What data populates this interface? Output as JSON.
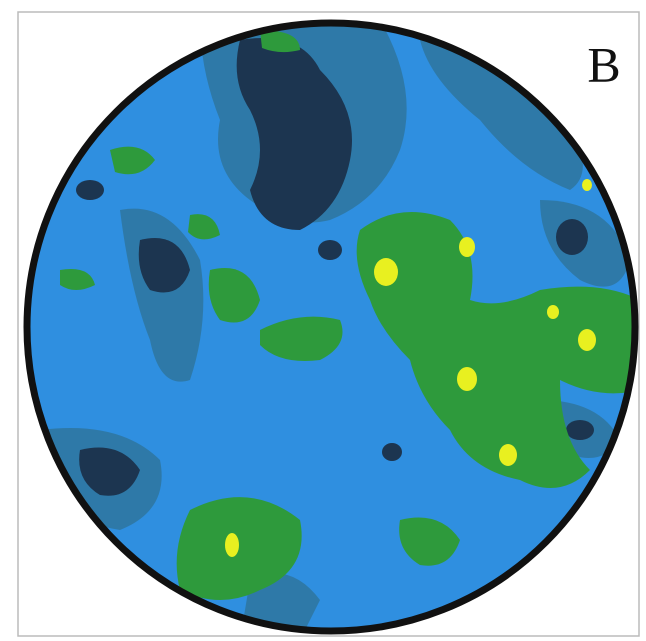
{
  "panel_label": "B"
}
